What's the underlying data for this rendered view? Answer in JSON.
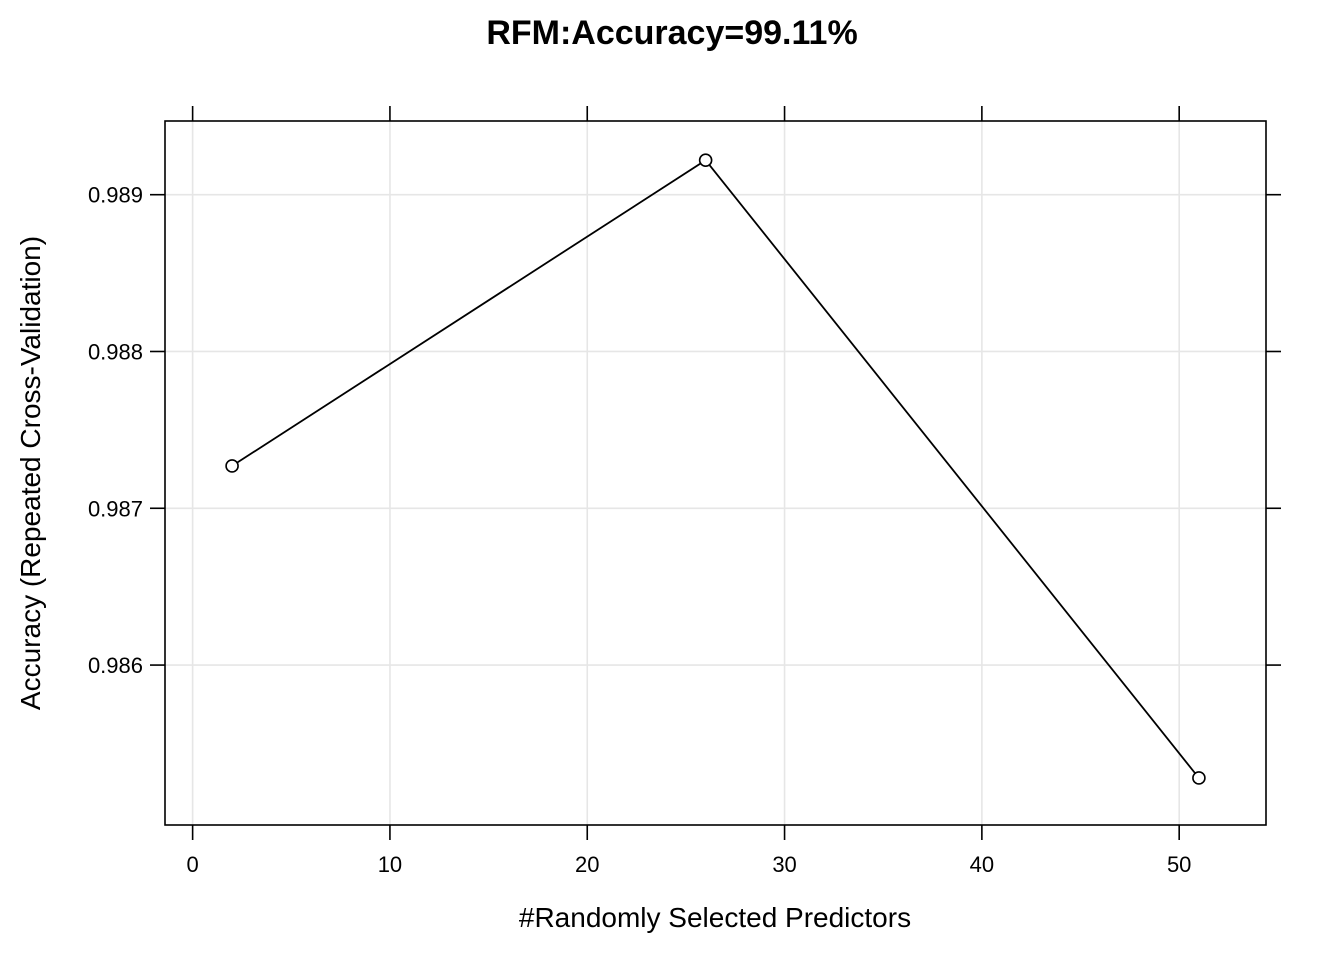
{
  "chart_data": {
    "type": "line",
    "title": "RFM:Accuracy=99.11%",
    "xlabel": "#Randomly Selected Predictors",
    "ylabel": "Accuracy (Repeated Cross-Validation)",
    "xlim": [
      -1.4,
      54.4
    ],
    "ylim": [
      0.98498,
      0.98947
    ],
    "x_ticks": [
      0,
      10,
      20,
      30,
      40,
      50
    ],
    "x_tick_labels": [
      "0",
      "10",
      "20",
      "30",
      "40",
      "50"
    ],
    "y_ticks": [
      0.986,
      0.987,
      0.988,
      0.989
    ],
    "y_tick_labels": [
      "0.986",
      "0.987",
      "0.988",
      "0.989"
    ],
    "grid": true,
    "series": [
      {
        "x": [
          2,
          26,
          51
        ],
        "y": [
          0.98727,
          0.98922,
          0.98528
        ]
      }
    ],
    "colors": {
      "line": "#000000",
      "grid": "#e6e6e6",
      "frame": "#000000"
    }
  }
}
